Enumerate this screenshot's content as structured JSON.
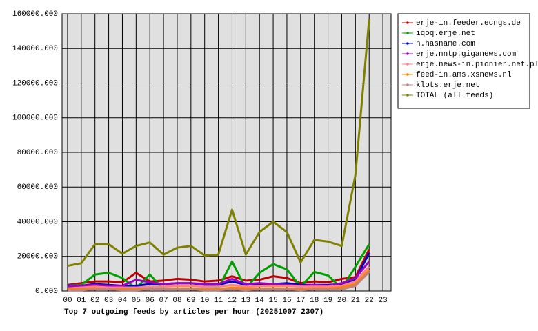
{
  "chart_data": {
    "type": "line",
    "title": "Top 7 outgoing feeds by articles per hour (20251007 2307)",
    "categories": [
      "00",
      "01",
      "02",
      "03",
      "04",
      "05",
      "06",
      "07",
      "08",
      "09",
      "10",
      "11",
      "12",
      "13",
      "14",
      "15",
      "16",
      "17",
      "18",
      "19",
      "20",
      "21",
      "22",
      "23"
    ],
    "series": [
      {
        "name": "erje-in.feeder.ecngs.de",
        "color": "#c00000",
        "values": [
          3500,
          4500,
          5500,
          5500,
          5000,
          10500,
          5500,
          6000,
          7000,
          6500,
          5500,
          6000,
          8500,
          6000,
          6500,
          8500,
          7500,
          4500,
          5500,
          5000,
          7000,
          8000,
          24000,
          null
        ]
      },
      {
        "name": "iqoq.erje.net",
        "color": "#00a000",
        "values": [
          3000,
          3500,
          9500,
          10500,
          7500,
          1500,
          9500,
          1000,
          1000,
          1000,
          500,
          1500,
          17000,
          1500,
          10500,
          15500,
          12500,
          2500,
          11000,
          9000,
          1500,
          14000,
          27000,
          null
        ]
      },
      {
        "name": "n.hasname.com",
        "color": "#0000c0",
        "values": [
          3000,
          3000,
          4000,
          3500,
          3000,
          3000,
          4000,
          4000,
          4500,
          4500,
          3500,
          3500,
          5500,
          3500,
          4000,
          4000,
          4500,
          3500,
          3500,
          3500,
          4000,
          6500,
          22000,
          null
        ]
      },
      {
        "name": "erje.nntp.giganews.com",
        "color": "#a000c0",
        "values": [
          2500,
          3000,
          3500,
          3000,
          3000,
          6500,
          5000,
          4000,
          4500,
          4500,
          4000,
          4000,
          7000,
          4000,
          4500,
          4000,
          3500,
          3000,
          3500,
          3000,
          4500,
          7500,
          17000,
          null
        ]
      },
      {
        "name": "erje.news-in.pionier.net.pl",
        "color": "#ff8080",
        "values": [
          1500,
          2000,
          2500,
          2000,
          2000,
          2000,
          2500,
          2500,
          3000,
          3000,
          2500,
          2500,
          3500,
          2500,
          3000,
          3000,
          3000,
          2500,
          2500,
          2500,
          3000,
          5500,
          14000,
          null
        ]
      },
      {
        "name": "feed-in.ams.xsnews.nl",
        "color": "#ff8000",
        "values": [
          1000,
          1000,
          1500,
          1000,
          1000,
          1000,
          1000,
          1000,
          1500,
          1500,
          1000,
          1000,
          2000,
          1500,
          1500,
          1500,
          1500,
          1000,
          1500,
          1500,
          2000,
          4000,
          12000,
          null
        ]
      },
      {
        "name": "klots.erje.net",
        "color": "#c08080",
        "values": [
          500,
          500,
          1000,
          1000,
          500,
          500,
          1000,
          1000,
          1000,
          1000,
          500,
          500,
          1000,
          500,
          1000,
          1000,
          1000,
          500,
          1000,
          1000,
          1000,
          3000,
          11000,
          null
        ]
      },
      {
        "name": "TOTAL (all feeds)",
        "color": "#808000",
        "values": [
          14500,
          16000,
          27000,
          27000,
          21500,
          26000,
          28000,
          21000,
          25000,
          26000,
          20500,
          21000,
          47000,
          21000,
          34000,
          40000,
          34000,
          16500,
          29500,
          28500,
          26000,
          67000,
          157000,
          null
        ]
      }
    ],
    "ylim": [
      0,
      160000
    ],
    "yticks": [
      {
        "value": 0,
        "label": "0.000"
      },
      {
        "value": 20000,
        "label": "20000.000"
      },
      {
        "value": 40000,
        "label": "40000.000"
      },
      {
        "value": 60000,
        "label": "60000.000"
      },
      {
        "value": 80000,
        "label": "80000.000"
      },
      {
        "value": 100000,
        "label": "100000.000"
      },
      {
        "value": 120000,
        "label": "120000.000"
      },
      {
        "value": 140000,
        "label": "140000.000"
      },
      {
        "value": 160000,
        "label": "160000.000"
      }
    ],
    "grid": true,
    "legend": "right"
  }
}
